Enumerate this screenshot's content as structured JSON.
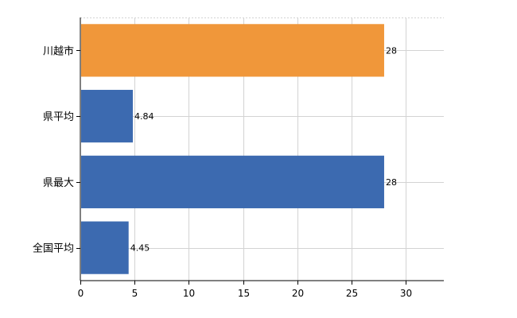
{
  "chart_data": {
    "type": "bar",
    "orientation": "horizontal",
    "categories": [
      "川越市",
      "県平均",
      "県最大",
      "全国平均"
    ],
    "values": [
      28,
      4.84,
      28,
      4.45
    ],
    "value_labels": [
      "28",
      "4.84",
      "28",
      "4.45"
    ],
    "bar_colors": [
      "#f0973a",
      "#3c6ab0",
      "#3c6ab0",
      "#3c6ab0"
    ],
    "x_ticks": [
      "0",
      "5",
      "10",
      "15",
      "20",
      "25",
      "30"
    ],
    "xlim": [
      0,
      33.5
    ],
    "grid": true,
    "legend": "none"
  }
}
